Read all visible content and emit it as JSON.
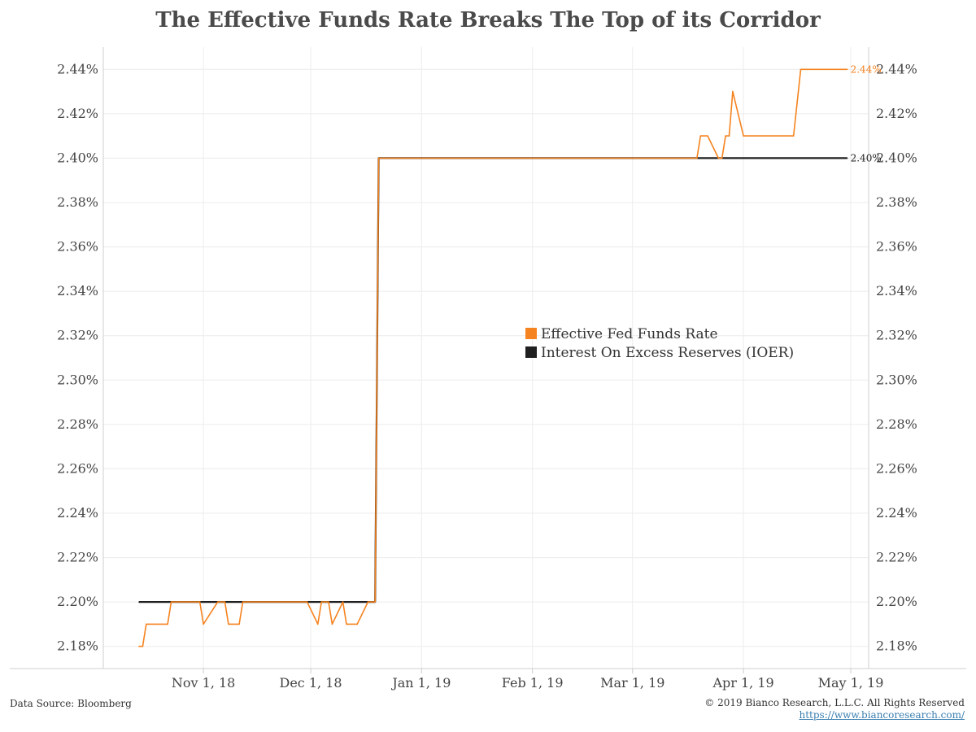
{
  "chart_data": {
    "type": "line",
    "title": "The Effective Funds Rate Breaks The Top of its Corridor",
    "xlabel": "",
    "ylabel": "",
    "x_tick_labels": [
      "Nov 1, 18",
      "Dec 1, 18",
      "Jan 1, 19",
      "Feb 1, 19",
      "Mar 1, 19",
      "Apr 1, 19",
      "May 1, 19"
    ],
    "x_ticks": [
      "2018-11-01",
      "2018-12-01",
      "2019-01-01",
      "2019-02-01",
      "2019-03-01",
      "2019-04-01",
      "2019-05-01"
    ],
    "xlim": [
      "2018-10-04",
      "2019-05-06"
    ],
    "ylim": [
      2.17,
      2.45
    ],
    "y_ticks": [
      2.18,
      2.2,
      2.22,
      2.24,
      2.26,
      2.28,
      2.3,
      2.32,
      2.34,
      2.36,
      2.38,
      2.4,
      2.42,
      2.44
    ],
    "y_tick_labels": [
      "2.18%",
      "2.20%",
      "2.22%",
      "2.24%",
      "2.26%",
      "2.28%",
      "2.30%",
      "2.32%",
      "2.34%",
      "2.36%",
      "2.38%",
      "2.40%",
      "2.42%",
      "2.44%"
    ],
    "grid": true,
    "legend_position": "center-right",
    "series": [
      {
        "name": "Effective Fed Funds Rate",
        "color": "#F5831F",
        "end_label": "2.44%",
        "points": [
          [
            "2018-10-14",
            2.18
          ],
          [
            "2018-10-15",
            2.18
          ],
          [
            "2018-10-16",
            2.19
          ],
          [
            "2018-10-22",
            2.19
          ],
          [
            "2018-10-23",
            2.2
          ],
          [
            "2018-10-31",
            2.2
          ],
          [
            "2018-11-01",
            2.19
          ],
          [
            "2018-11-05",
            2.2
          ],
          [
            "2018-11-07",
            2.2
          ],
          [
            "2018-11-08",
            2.19
          ],
          [
            "2018-11-11",
            2.19
          ],
          [
            "2018-11-12",
            2.2
          ],
          [
            "2018-11-30",
            2.2
          ],
          [
            "2018-12-03",
            2.19
          ],
          [
            "2018-12-04",
            2.2
          ],
          [
            "2018-12-06",
            2.2
          ],
          [
            "2018-12-07",
            2.19
          ],
          [
            "2018-12-10",
            2.2
          ],
          [
            "2018-12-11",
            2.19
          ],
          [
            "2018-12-14",
            2.19
          ],
          [
            "2018-12-17",
            2.2
          ],
          [
            "2018-12-19",
            2.2
          ],
          [
            "2018-12-20",
            2.4
          ],
          [
            "2019-03-19",
            2.4
          ],
          [
            "2019-03-20",
            2.41
          ],
          [
            "2019-03-22",
            2.41
          ],
          [
            "2019-03-25",
            2.4
          ],
          [
            "2019-03-26",
            2.4
          ],
          [
            "2019-03-27",
            2.41
          ],
          [
            "2019-03-28",
            2.41
          ],
          [
            "2019-03-29",
            2.43
          ],
          [
            "2019-04-01",
            2.41
          ],
          [
            "2019-04-15",
            2.41
          ],
          [
            "2019-04-17",
            2.44
          ],
          [
            "2019-04-30",
            2.44
          ]
        ]
      },
      {
        "name": "Interest On Excess Reserves (IOER)",
        "color": "#1F1F1F",
        "end_label": "2.40%",
        "points": [
          [
            "2018-10-14",
            2.2
          ],
          [
            "2018-12-19",
            2.2
          ],
          [
            "2018-12-20",
            2.4
          ],
          [
            "2019-04-30",
            2.4
          ]
        ]
      }
    ]
  },
  "footer": {
    "source": "Data Source: Bloomberg",
    "copyright": "© 2019 Bianco Research, L.L.C. All Rights Reserved",
    "url": "https://www.biancoresearch.com/"
  }
}
